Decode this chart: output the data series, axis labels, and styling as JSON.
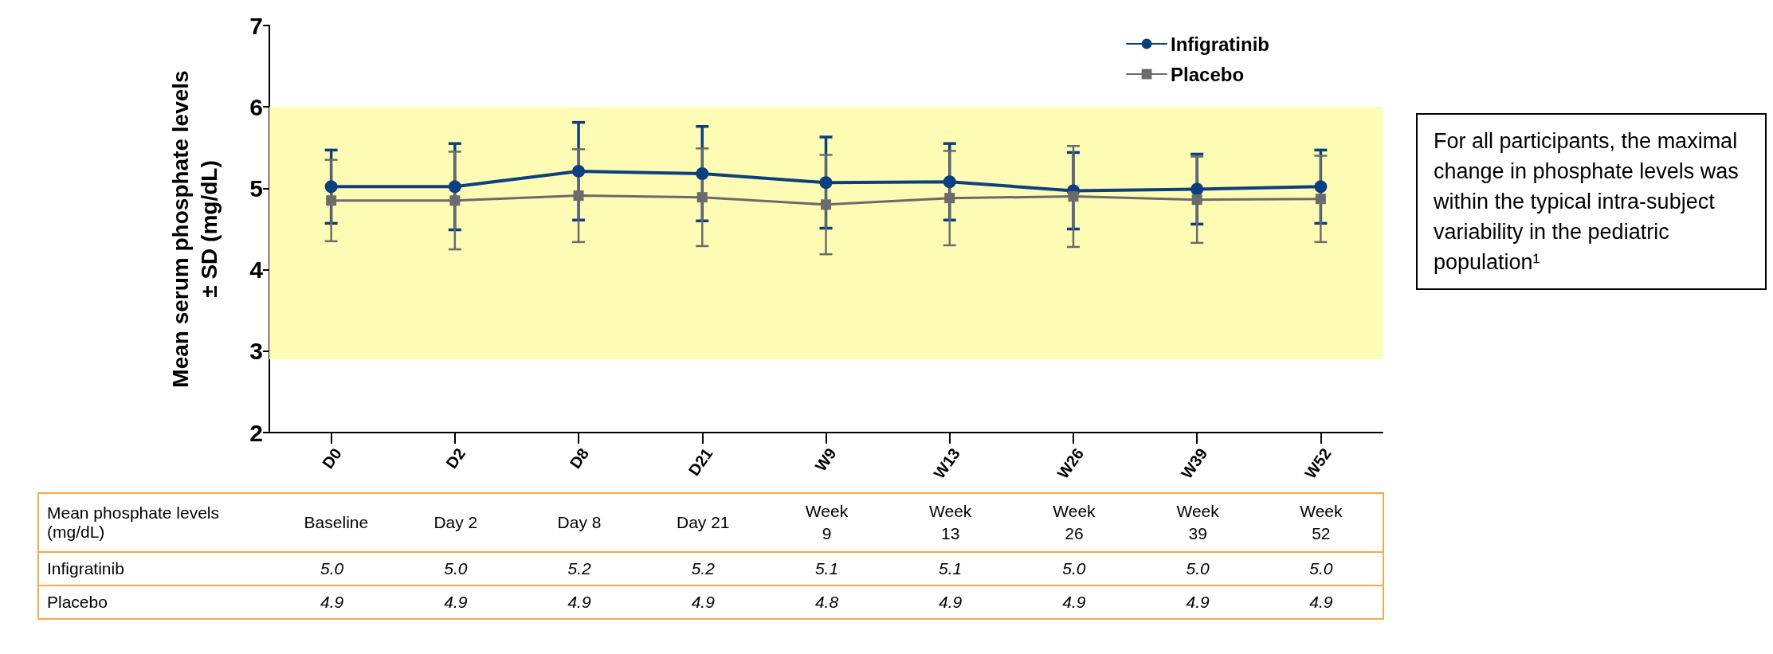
{
  "chart_data": {
    "type": "line",
    "ylabel": "Mean serum phosphate levels\n± SD (mg/dL)",
    "categories": [
      "D0",
      "D2",
      "D8",
      "D21",
      "W9",
      "W13",
      "W26",
      "W39",
      "W52"
    ],
    "ylim": [
      2,
      7
    ],
    "yticks": [
      2,
      3,
      4,
      5,
      6,
      7
    ],
    "series": [
      {
        "name": "Infigratinib",
        "color": "#0b3f7f",
        "marker": "circle",
        "values": [
          5.02,
          5.02,
          5.21,
          5.18,
          5.07,
          5.08,
          4.97,
          4.99,
          5.02
        ],
        "errors": [
          0.45,
          0.53,
          0.6,
          0.58,
          0.56,
          0.47,
          0.47,
          0.43,
          0.45
        ],
        "value_labels": [
          "5.0",
          "5.0",
          "5.2",
          "5.2",
          "5.1",
          "5.1",
          "5.0",
          "5.0",
          "5.0"
        ]
      },
      {
        "name": "Placebo",
        "color": "#6b6b6b",
        "marker": "square",
        "values": [
          4.85,
          4.85,
          4.91,
          4.89,
          4.8,
          4.88,
          4.9,
          4.86,
          4.87
        ],
        "errors": [
          0.5,
          0.6,
          0.57,
          0.6,
          0.61,
          0.58,
          0.62,
          0.53,
          0.53
        ],
        "value_labels": [
          "4.9",
          "4.9",
          "4.9",
          "4.9",
          "4.8",
          "4.9",
          "4.9",
          "4.9",
          "4.9"
        ]
      }
    ],
    "bands": [
      {
        "axis": "y",
        "from": 2.9,
        "to": 6,
        "color": "#fdfbb4"
      }
    ],
    "legend": "top right",
    "grid": false,
    "annotations": [
      "For all participants, the maximal change in phosphate levels was within the typical intra-subject variability in the pediatric population¹",
      "Mean phosphate levels (mg/dL)",
      "Baseline",
      "Day 2",
      "Day 8",
      "Day 21",
      "Week 9",
      "Week 13",
      "Week 26",
      "Week 39",
      "Week 52"
    ]
  }
}
